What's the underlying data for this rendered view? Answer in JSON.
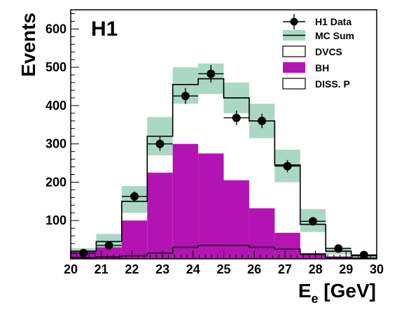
{
  "chart_data": {
    "type": "bar",
    "logo": "H1",
    "xlabel": "E",
    "xlabel_sub": "e",
    "xlabel_unit": " [GeV]",
    "ylabel": "Events",
    "xlim": [
      20,
      30
    ],
    "ylim": [
      0,
      650
    ],
    "x_ticks": [
      20,
      21,
      22,
      23,
      24,
      25,
      26,
      27,
      28,
      29,
      30
    ],
    "y_ticks": [
      100,
      200,
      300,
      400,
      500,
      600
    ],
    "bin_edges": [
      20,
      20.8333,
      21.6667,
      22.5,
      23.3333,
      24.1667,
      25,
      25.8333,
      26.6667,
      27.5,
      28.3333,
      29.1667,
      30
    ],
    "legend": {
      "placement": "top-right",
      "entries": [
        "H1 Data",
        "MC Sum",
        "DVCS",
        "BH",
        "DISS. P"
      ]
    },
    "colors": {
      "band": "#aad8c4",
      "bh": "#b413b4",
      "mc_line": "#000000",
      "points": "#000000"
    },
    "series": [
      {
        "name": "H1 Data",
        "x": [
          20.4167,
          21.25,
          22.0833,
          22.9167,
          23.75,
          24.5833,
          25.4167,
          26.25,
          27.0833,
          27.9167,
          28.75,
          29.5833
        ],
        "values": [
          15,
          35,
          163,
          300,
          425,
          483,
          368,
          360,
          242,
          98,
          27,
          10
        ],
        "errors": [
          5,
          6,
          13,
          18,
          21,
          23,
          19,
          19,
          16,
          10,
          5,
          3
        ]
      },
      {
        "name": "MC Sum",
        "values": [
          20,
          45,
          150,
          320,
          455,
          470,
          420,
          360,
          245,
          90,
          20,
          8
        ],
        "band_low": [
          12,
          30,
          120,
          270,
          405,
          430,
          380,
          315,
          200,
          70,
          12,
          4
        ],
        "band_high": [
          28,
          65,
          190,
          370,
          500,
          510,
          460,
          405,
          285,
          130,
          30,
          13
        ]
      },
      {
        "name": "DVCS",
        "values": [
          20,
          45,
          150,
          320,
          455,
          470,
          420,
          360,
          245,
          90,
          20,
          8
        ]
      },
      {
        "name": "BH",
        "values": [
          18,
          30,
          100,
          225,
          300,
          275,
          205,
          132,
          68,
          15,
          6,
          2
        ]
      },
      {
        "name": "DISS. P",
        "values": [
          3,
          5,
          8,
          15,
          30,
          35,
          35,
          30,
          25,
          12,
          4,
          2
        ]
      }
    ]
  }
}
